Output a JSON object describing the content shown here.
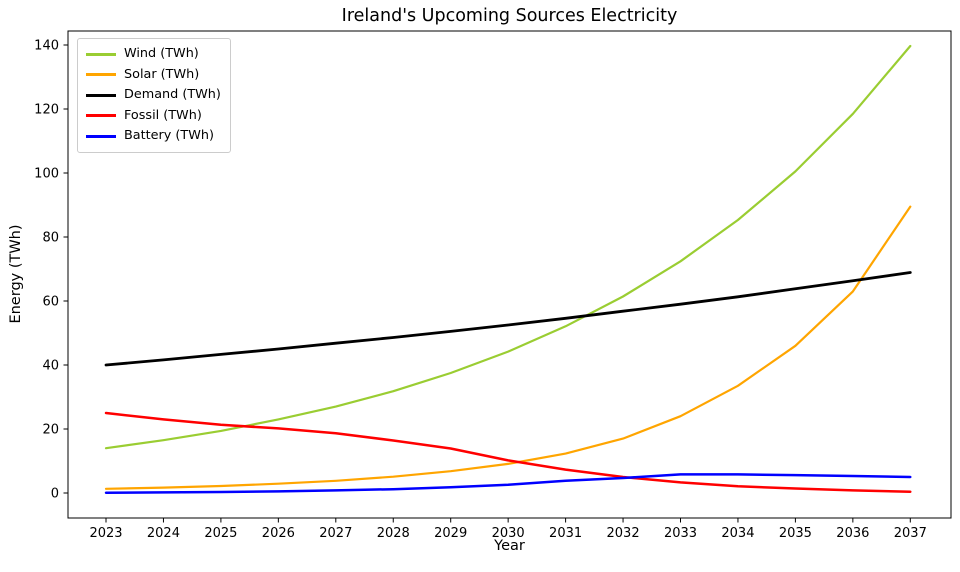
{
  "chart_data": {
    "type": "line",
    "title": "Ireland's Upcoming Sources Electricity",
    "xlabel": "Year",
    "ylabel": "Energy (TWh)",
    "x": [
      2023,
      2024,
      2025,
      2026,
      2027,
      2028,
      2029,
      2030,
      2031,
      2032,
      2033,
      2034,
      2035,
      2036,
      2037
    ],
    "series": [
      {
        "name": "Wind (TWh)",
        "color": "#9ACD32",
        "line_width": 2.2,
        "values": [
          14.0,
          16.5,
          19.4,
          23.0,
          27.0,
          31.8,
          37.5,
          44.2,
          52.1,
          61.4,
          72.4,
          85.3,
          100.5,
          118.5,
          139.7
        ]
      },
      {
        "name": "Solar (TWh)",
        "color": "#FFA500",
        "line_width": 2.2,
        "values": [
          1.3,
          1.7,
          2.2,
          2.9,
          3.8,
          5.1,
          6.8,
          9.1,
          12.3,
          17.0,
          24.0,
          33.5,
          46.0,
          63.0,
          89.5
        ]
      },
      {
        "name": "Demand (TWh)",
        "color": "#000000",
        "line_width": 2.8,
        "values": [
          40.0,
          41.6,
          43.3,
          45.0,
          46.8,
          48.6,
          50.5,
          52.5,
          54.6,
          56.8,
          59.0,
          61.3,
          63.8,
          66.3,
          68.9
        ]
      },
      {
        "name": "Fossil (TWh)",
        "color": "#FF0000",
        "line_width": 2.5,
        "values": [
          25.0,
          23.0,
          21.3,
          20.2,
          18.7,
          16.4,
          13.9,
          10.2,
          7.3,
          5.0,
          3.3,
          2.1,
          1.4,
          0.8,
          0.4
        ]
      },
      {
        "name": "Battery (TWh)",
        "color": "#0000FF",
        "line_width": 2.5,
        "values": [
          0.1,
          0.2,
          0.3,
          0.5,
          0.8,
          1.2,
          1.8,
          2.6,
          3.8,
          4.7,
          5.8,
          5.8,
          5.6,
          5.3,
          5.0
        ]
      }
    ],
    "xlim": [
      2023,
      2037
    ],
    "ylim": [
      0,
      140
    ],
    "yticks": [
      0,
      20,
      40,
      60,
      80,
      100,
      120,
      140
    ],
    "legend_position": "upper left",
    "grid": false,
    "axis_color": "#000000"
  }
}
